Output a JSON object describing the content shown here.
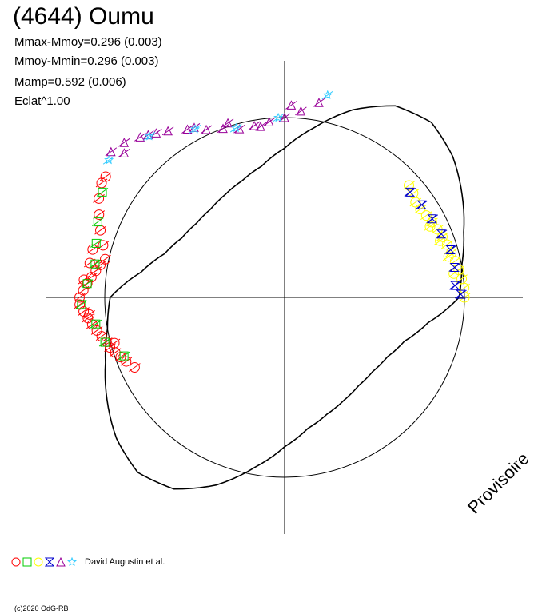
{
  "header": {
    "title": "(4644) Oumu",
    "stats": [
      "Mmax-Mmoy=0.296 (0.003)",
      "Mmoy-Mmin=0.296 (0.003)",
      "Mamp=0.592 (0.006)",
      "Eclat^1.00"
    ]
  },
  "watermark": "Provisoire",
  "legend": {
    "label": "David Augustin et al.",
    "markers": [
      {
        "shape": "circle",
        "color": "#ff0000",
        "icon": "circle-marker-icon"
      },
      {
        "shape": "square",
        "color": "#00cc00",
        "icon": "square-marker-icon"
      },
      {
        "shape": "circle",
        "color": "#ffff00",
        "icon": "circle-marker-icon"
      },
      {
        "shape": "hourglass",
        "color": "#0000cc",
        "icon": "hourglass-marker-icon"
      },
      {
        "shape": "triangle",
        "color": "#990099",
        "icon": "triangle-marker-icon"
      },
      {
        "shape": "star",
        "color": "#33ccff",
        "icon": "star-marker-icon"
      }
    ]
  },
  "copyright": "(c)2020 OdG-RB",
  "chart_data": {
    "type": "scatter",
    "coordinate_system": "polar",
    "grid": false,
    "axes": "crosshair",
    "reference_circle_radius": 1.0,
    "xlim": [
      -1.3,
      1.3
    ],
    "ylim": [
      -1.3,
      1.3
    ],
    "model_curve": {
      "description_free": true,
      "theta_deg": [
        0,
        10,
        20,
        30,
        40,
        50,
        60,
        70,
        80,
        90,
        100,
        110,
        120,
        130,
        140,
        150,
        160,
        170,
        180,
        190,
        200,
        210,
        220,
        230,
        240,
        250,
        260,
        270,
        280,
        290,
        300,
        310,
        320,
        330,
        340,
        350
      ],
      "r": [
        0.97,
        1.0,
        1.06,
        1.14,
        1.22,
        1.27,
        1.23,
        1.11,
        0.96,
        0.83,
        0.74,
        0.69,
        0.66,
        0.64,
        0.64,
        0.66,
        0.71,
        0.81,
        0.97,
        1.0,
        1.06,
        1.14,
        1.22,
        1.27,
        1.23,
        1.11,
        0.96,
        0.83,
        0.74,
        0.69,
        0.66,
        0.64,
        0.64,
        0.66,
        0.71,
        0.81
      ]
    },
    "series": [
      {
        "marker": "circle",
        "color": "#ff0000",
        "points_theta_r": [
          [
            168,
            1.02
          ],
          [
            170,
            1.04
          ],
          [
            172,
            1.06
          ],
          [
            174,
            1.08
          ],
          [
            176,
            1.1
          ],
          [
            178,
            1.12
          ],
          [
            180,
            1.14
          ],
          [
            182,
            1.14
          ],
          [
            184,
            1.12
          ],
          [
            186,
            1.1
          ],
          [
            188,
            1.08
          ],
          [
            190,
            1.06
          ],
          [
            192,
            1.04
          ],
          [
            194,
            1.02
          ],
          [
            196,
            1.01
          ],
          [
            198,
            0.99
          ],
          [
            200,
            0.97
          ],
          [
            202,
            0.95
          ],
          [
            164,
            1.05
          ],
          [
            160,
            1.09
          ],
          [
            156,
            1.13
          ],
          [
            152,
            1.17
          ],
          [
            148,
            1.2
          ],
          [
            146,
            1.2
          ],
          [
            166,
            1.1
          ],
          [
            170,
            1.1
          ],
          [
            175,
            1.12
          ],
          [
            185,
            1.09
          ],
          [
            195,
            0.98
          ],
          [
            205,
            0.92
          ]
        ]
      },
      {
        "marker": "square",
        "color": "#00cc00",
        "points_theta_r": [
          [
            150,
            1.17
          ],
          [
            158,
            1.12
          ],
          [
            164,
            1.09
          ],
          [
            170,
            1.07
          ],
          [
            176,
            1.1
          ],
          [
            182,
            1.13
          ],
          [
            188,
            1.06
          ],
          [
            194,
            1.03
          ],
          [
            200,
            0.95
          ]
        ]
      },
      {
        "marker": "circle",
        "color": "#ffff00",
        "points_theta_r": [
          [
            0,
            1.0
          ],
          [
            3,
            1.0
          ],
          [
            6,
            0.99
          ],
          [
            9,
            0.98
          ],
          [
            12,
            0.97
          ],
          [
            15,
            0.96
          ],
          [
            18,
            0.95
          ],
          [
            21,
            0.94
          ],
          [
            24,
            0.93
          ],
          [
            27,
            0.92
          ],
          [
            30,
            0.91
          ],
          [
            33,
            0.9
          ],
          [
            36,
            0.9
          ],
          [
            39,
            0.92
          ],
          [
            42,
            0.93
          ],
          [
            8,
            0.95
          ],
          [
            14,
            0.94
          ],
          [
            20,
            0.92
          ],
          [
            26,
            0.9
          ]
        ]
      },
      {
        "marker": "hourglass",
        "color": "#0000cc",
        "points_theta_r": [
          [
            1,
            0.98
          ],
          [
            4,
            0.95
          ],
          [
            10,
            0.96
          ],
          [
            16,
            0.96
          ],
          [
            22,
            0.94
          ],
          [
            28,
            0.93
          ],
          [
            34,
            0.92
          ],
          [
            40,
            0.91
          ]
        ]
      },
      {
        "marker": "triangle",
        "color": "#990099",
        "points_theta_r": [
          [
            80,
            1.1
          ],
          [
            85,
            1.04
          ],
          [
            90,
            1.0
          ],
          [
            95,
            0.98
          ],
          [
            100,
            0.97
          ],
          [
            105,
            0.97
          ],
          [
            110,
            1.0
          ],
          [
            115,
            1.03
          ],
          [
            120,
            1.08
          ],
          [
            125,
            1.13
          ],
          [
            128,
            1.16
          ],
          [
            132,
            1.2
          ],
          [
            136,
            1.24
          ],
          [
            140,
            1.26
          ],
          [
            138,
            1.2
          ],
          [
            130,
            1.18
          ],
          [
            118,
            1.07
          ],
          [
            108,
            1.02
          ],
          [
            98,
            0.96
          ],
          [
            88,
            1.07
          ]
        ]
      },
      {
        "marker": "star",
        "color": "#33ccff",
        "points_theta_r": [
          [
            78,
            1.15
          ],
          [
            92,
            1.0
          ],
          [
            106,
            0.98
          ],
          [
            118,
            1.06
          ],
          [
            130,
            1.17
          ],
          [
            142,
            1.24
          ]
        ]
      }
    ]
  }
}
